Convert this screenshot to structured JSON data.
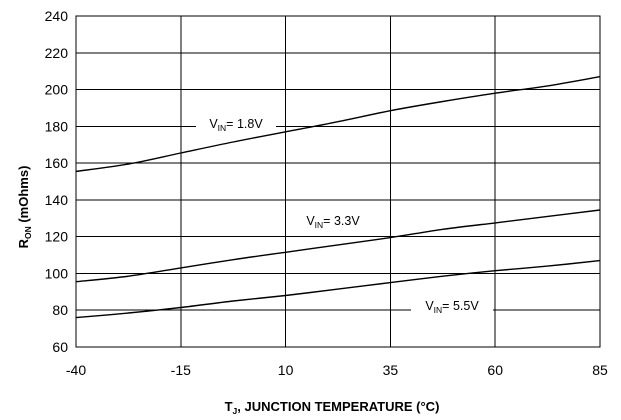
{
  "chart_data": {
    "type": "line",
    "xlabel": "T",
    "xlabel_sub": "J",
    "xlabel_rest": ", JUNCTION TEMPERATURE (°C)",
    "ylabel": "R",
    "ylabel_sub": "ON",
    "ylabel_rest": " (mOhms)",
    "xlim": [
      -40,
      85
    ],
    "ylim": [
      60,
      240
    ],
    "x_ticks": [
      -40,
      -15,
      10,
      35,
      60,
      85
    ],
    "y_ticks": [
      60,
      80,
      100,
      120,
      140,
      160,
      180,
      200,
      220,
      240
    ],
    "grid": true,
    "x": [
      -40,
      -27.5,
      -15,
      -2.5,
      10,
      22.5,
      35,
      47.5,
      60,
      72.5,
      85
    ],
    "series": [
      {
        "label_main": "V",
        "label_sub": "IN",
        "label_value": "= 1.8V",
        "values": [
          155.5,
          159.5,
          165.5,
          171.5,
          177,
          182.5,
          188.5,
          193.5,
          198,
          202,
          207
        ]
      },
      {
        "label_main": "V",
        "label_sub": "IN",
        "label_value": "= 3.3V",
        "values": [
          95.5,
          98.5,
          103,
          107.5,
          111.5,
          115.5,
          119.5,
          124,
          127.5,
          131,
          134.5
        ]
      },
      {
        "label_main": "V",
        "label_sub": "IN",
        "label_value": "= 5.5V",
        "values": [
          76,
          78.5,
          81.5,
          85,
          88,
          91.5,
          95,
          98.5,
          101.5,
          104,
          107
        ]
      }
    ]
  }
}
